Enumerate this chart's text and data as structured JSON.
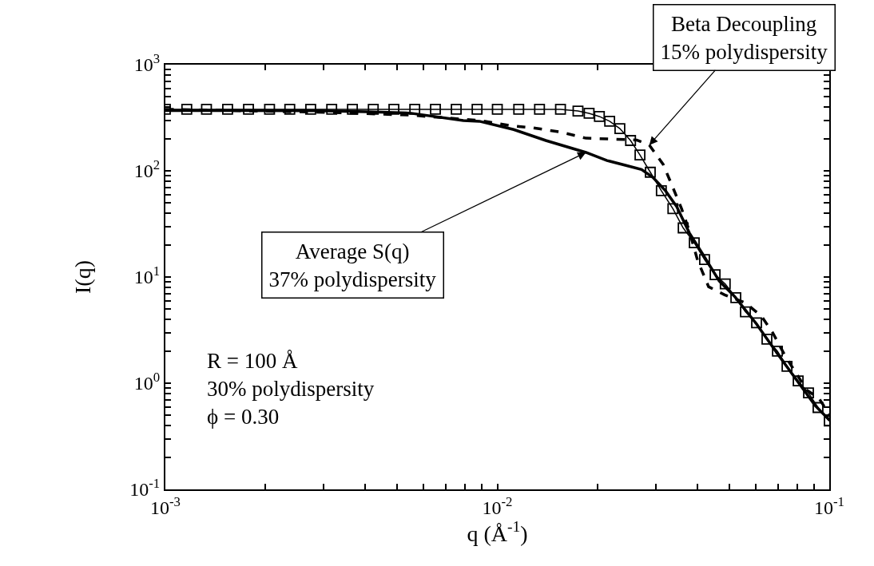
{
  "chart_data": {
    "type": "line",
    "xlabel": "q (Å$^{-1}$)",
    "ylabel": "I(q)",
    "log": "xy",
    "xlim": [
      0.001,
      0.1
    ],
    "ylim": [
      0.1,
      1000
    ],
    "xticks": [
      {
        "value": 0.001,
        "label": "10$^{-3}$"
      },
      {
        "value": 0.002,
        "label": null
      },
      {
        "value": 0.003,
        "label": null
      },
      {
        "value": 0.004,
        "label": null
      },
      {
        "value": 0.005,
        "label": null
      },
      {
        "value": 0.006,
        "label": null
      },
      {
        "value": 0.007,
        "label": null
      },
      {
        "value": 0.008,
        "label": null
      },
      {
        "value": 0.009,
        "label": null
      },
      {
        "value": 0.01,
        "label": "10$^{-2}$"
      },
      {
        "value": 0.02,
        "label": null
      },
      {
        "value": 0.03,
        "label": null
      },
      {
        "value": 0.04,
        "label": null
      },
      {
        "value": 0.05,
        "label": null
      },
      {
        "value": 0.06,
        "label": null
      },
      {
        "value": 0.07,
        "label": null
      },
      {
        "value": 0.08,
        "label": null
      },
      {
        "value": 0.09,
        "label": null
      },
      {
        "value": 0.1,
        "label": "10$^{-1}$"
      }
    ],
    "yticks": [
      {
        "value": 0.1,
        "label": "10$^{-1}$"
      },
      {
        "value": 0.2,
        "label": null
      },
      {
        "value": 0.3,
        "label": null
      },
      {
        "value": 0.4,
        "label": null
      },
      {
        "value": 0.5,
        "label": null
      },
      {
        "value": 0.6,
        "label": null
      },
      {
        "value": 0.7,
        "label": null
      },
      {
        "value": 0.8,
        "label": null
      },
      {
        "value": 0.9,
        "label": null
      },
      {
        "value": 1,
        "label": "10$^{0}$"
      },
      {
        "value": 2,
        "label": null
      },
      {
        "value": 3,
        "label": null
      },
      {
        "value": 4,
        "label": null
      },
      {
        "value": 5,
        "label": null
      },
      {
        "value": 6,
        "label": null
      },
      {
        "value": 7,
        "label": null
      },
      {
        "value": 8,
        "label": null
      },
      {
        "value": 9,
        "label": null
      },
      {
        "value": 10,
        "label": "10$^{1}$"
      },
      {
        "value": 20,
        "label": null
      },
      {
        "value": 30,
        "label": null
      },
      {
        "value": 40,
        "label": null
      },
      {
        "value": 50,
        "label": null
      },
      {
        "value": 60,
        "label": null
      },
      {
        "value": 70,
        "label": null
      },
      {
        "value": 80,
        "label": null
      },
      {
        "value": 90,
        "label": null
      },
      {
        "value": 100,
        "label": "10$^{2}$"
      },
      {
        "value": 200,
        "label": null
      },
      {
        "value": 300,
        "label": null
      },
      {
        "value": 400,
        "label": null
      },
      {
        "value": 500,
        "label": null
      },
      {
        "value": 600,
        "label": null
      },
      {
        "value": 700,
        "label": null
      },
      {
        "value": 800,
        "label": null
      },
      {
        "value": 900,
        "label": null
      },
      {
        "value": 1000,
        "label": "10$^{3}$"
      }
    ],
    "series": [
      {
        "color": "#000000",
        "marker": "square",
        "line_style": "solid",
        "x": [
          0.001,
          0.00116,
          0.00133,
          0.00154,
          0.00178,
          0.00206,
          0.00237,
          0.00274,
          0.00317,
          0.00366,
          0.00423,
          0.00488,
          0.00564,
          0.00651,
          0.00752,
          0.00869,
          0.01,
          0.0116,
          0.0134,
          0.0155,
          0.0175,
          0.0189,
          0.0203,
          0.0218,
          0.0234,
          0.0252,
          0.0269,
          0.0289,
          0.0312,
          0.0338,
          0.0363,
          0.0392,
          0.0421,
          0.0453,
          0.0486,
          0.0523,
          0.0559,
          0.0604,
          0.0649,
          0.0698,
          0.0746,
          0.0806,
          0.0866,
          0.0925,
          0.1
        ],
        "values": [
          380,
          380,
          380,
          380,
          380,
          380,
          380,
          380,
          380,
          380,
          380,
          380,
          380,
          380,
          380,
          380,
          380,
          380,
          380,
          380,
          366,
          348,
          325,
          293,
          250,
          193,
          141,
          97,
          65,
          44,
          29,
          21,
          14.6,
          10.5,
          8.6,
          6.4,
          4.7,
          3.7,
          2.6,
          2.0,
          1.44,
          1.05,
          0.81,
          0.59,
          0.44
        ]
      },
      {
        "color": "#000000",
        "marker": "none",
        "line_style": "solid",
        "x": [
          0.001,
          0.00167,
          0.00291,
          0.00406,
          0.00545,
          0.0079,
          0.00883,
          0.0112,
          0.014,
          0.0185,
          0.0214,
          0.0243,
          0.0272,
          0.0294,
          0.0321,
          0.0347,
          0.0379,
          0.0417,
          0.0466,
          0.052,
          0.0604,
          0.0698,
          0.081,
          0.0905,
          0.1
        ],
        "values": [
          370,
          370,
          368,
          360,
          350,
          298,
          293,
          245,
          193,
          149,
          125,
          113,
          103,
          87,
          65,
          46,
          26,
          16.2,
          9.2,
          6.5,
          3.6,
          1.9,
          1.0,
          0.62,
          0.45
        ]
      },
      {
        "color": "#000000",
        "marker": "none",
        "line_style": "dashed",
        "x": [
          0.001,
          0.00313,
          0.00545,
          0.00883,
          0.011,
          0.0128,
          0.0154,
          0.0185,
          0.0223,
          0.0263,
          0.0287,
          0.0316,
          0.0339,
          0.0359,
          0.0379,
          0.0401,
          0.0433,
          0.0484,
          0.0559,
          0.0624,
          0.0675,
          0.0737,
          0.0856,
          0.0931,
          0.1
        ],
        "values": [
          380,
          355,
          335,
          298,
          266,
          254,
          233,
          203,
          199,
          195,
          175,
          115,
          68,
          44,
          27,
          14.4,
          8.1,
          6.8,
          5.7,
          4.3,
          3.0,
          1.8,
          0.86,
          0.72,
          0.51
        ]
      }
    ],
    "annotations": [
      {
        "text": "Beta Decoupling\n15% polydispersity",
        "x": 0.0287,
        "y": 175
      },
      {
        "text": "Average S(q)\n37% polydispersity",
        "x": 0.0185,
        "y": 149
      },
      "R = 100 Å\n30% polydispersity\nϕ = 0.30"
    ]
  }
}
